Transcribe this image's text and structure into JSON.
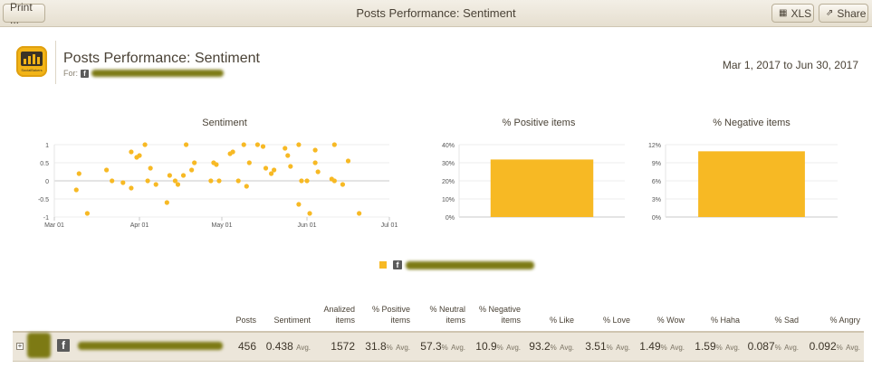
{
  "toolbar": {
    "print_label": "Print ...",
    "title": "Posts Performance: Sentiment",
    "xls_label": "XLS",
    "share_label": "Share"
  },
  "header": {
    "logo_text": "SocialBakers",
    "title": "Posts Performance: Sentiment",
    "for_label": "For:",
    "date_range": "Mar 1, 2017 to Jun 30, 2017"
  },
  "chart_data": [
    {
      "type": "scatter",
      "title": "Sentiment",
      "ylim": [
        -1,
        1
      ],
      "y_ticks": [
        "1",
        "0.5",
        "0",
        "-0.5",
        "-1"
      ],
      "x_ticks": [
        "Mar 01",
        "Apr 01",
        "May 01",
        "Jun 01",
        "Jul 01"
      ],
      "points": [
        {
          "x": "2017-03-09",
          "y": -0.25
        },
        {
          "x": "2017-03-10",
          "y": 0.2
        },
        {
          "x": "2017-03-13",
          "y": -0.9
        },
        {
          "x": "2017-03-20",
          "y": 0.3
        },
        {
          "x": "2017-03-22",
          "y": 0.0
        },
        {
          "x": "2017-03-26",
          "y": -0.05
        },
        {
          "x": "2017-03-29",
          "y": -0.2
        },
        {
          "x": "2017-03-29",
          "y": 0.8
        },
        {
          "x": "2017-03-31",
          "y": 0.65
        },
        {
          "x": "2017-04-01",
          "y": 0.7
        },
        {
          "x": "2017-04-03",
          "y": 1.0
        },
        {
          "x": "2017-04-04",
          "y": 0.0
        },
        {
          "x": "2017-04-05",
          "y": 0.35
        },
        {
          "x": "2017-04-07",
          "y": -0.1
        },
        {
          "x": "2017-04-11",
          "y": -0.6
        },
        {
          "x": "2017-04-12",
          "y": 0.15
        },
        {
          "x": "2017-04-14",
          "y": 0.0
        },
        {
          "x": "2017-04-15",
          "y": -0.1
        },
        {
          "x": "2017-04-17",
          "y": 0.15
        },
        {
          "x": "2017-04-18",
          "y": 1.0
        },
        {
          "x": "2017-04-20",
          "y": 0.3
        },
        {
          "x": "2017-04-21",
          "y": 0.5
        },
        {
          "x": "2017-04-27",
          "y": 0.0
        },
        {
          "x": "2017-04-28",
          "y": 0.5
        },
        {
          "x": "2017-04-29",
          "y": 0.45
        },
        {
          "x": "2017-04-30",
          "y": 0.0
        },
        {
          "x": "2017-05-04",
          "y": 0.75
        },
        {
          "x": "2017-05-05",
          "y": 0.8
        },
        {
          "x": "2017-05-07",
          "y": 0.0
        },
        {
          "x": "2017-05-09",
          "y": 1.0
        },
        {
          "x": "2017-05-10",
          "y": -0.15
        },
        {
          "x": "2017-05-11",
          "y": 0.5
        },
        {
          "x": "2017-05-14",
          "y": 1.0
        },
        {
          "x": "2017-05-16",
          "y": 0.95
        },
        {
          "x": "2017-05-17",
          "y": 0.35
        },
        {
          "x": "2017-05-19",
          "y": 0.2
        },
        {
          "x": "2017-05-20",
          "y": 0.3
        },
        {
          "x": "2017-05-24",
          "y": 0.9
        },
        {
          "x": "2017-05-25",
          "y": 0.7
        },
        {
          "x": "2017-05-26",
          "y": 0.4
        },
        {
          "x": "2017-05-29",
          "y": -0.65
        },
        {
          "x": "2017-05-29",
          "y": 1.0
        },
        {
          "x": "2017-05-30",
          "y": 0.0
        },
        {
          "x": "2017-06-01",
          "y": 0.0
        },
        {
          "x": "2017-06-02",
          "y": -0.9
        },
        {
          "x": "2017-06-04",
          "y": 0.5
        },
        {
          "x": "2017-06-04",
          "y": 0.85
        },
        {
          "x": "2017-06-05",
          "y": 0.25
        },
        {
          "x": "2017-06-10",
          "y": 0.05
        },
        {
          "x": "2017-06-11",
          "y": 0.0
        },
        {
          "x": "2017-06-11",
          "y": 1.0
        },
        {
          "x": "2017-06-14",
          "y": -0.1
        },
        {
          "x": "2017-06-16",
          "y": 0.55
        },
        {
          "x": "2017-06-20",
          "y": -0.9
        }
      ],
      "color": "#f7b924"
    },
    {
      "type": "bar",
      "title": "% Positive items",
      "ylim": [
        0,
        40
      ],
      "y_ticks": [
        "40%",
        "30%",
        "20%",
        "10%",
        "0%"
      ],
      "values": [
        31.8
      ],
      "color": "#f7b924"
    },
    {
      "type": "bar",
      "title": "% Negative items",
      "ylim": [
        0,
        12
      ],
      "y_ticks": [
        "12%",
        "9%",
        "6%",
        "3%",
        "0%"
      ],
      "values": [
        10.9
      ],
      "color": "#f7b924"
    }
  ],
  "table": {
    "headers": [
      "Posts",
      "Sentiment",
      "Analized items",
      "% Positive items",
      "% Neutral items",
      "% Negative items",
      "% Like",
      "% Love",
      "% Wow",
      "% Haha",
      "% Sad",
      "% Angry"
    ],
    "avg_label": "Avg.",
    "row": {
      "posts": "456",
      "sentiment": "0.438",
      "analized": "1572",
      "positive": "31.8",
      "neutral": "57.3",
      "negative": "10.9",
      "like": "93.2",
      "love": "3.51",
      "wow": "1.49",
      "haha": "1.59",
      "sad": "0.087",
      "angry": "0.092"
    },
    "pct": "%"
  },
  "colors": {
    "accent": "#f7b924",
    "row_bg": "#ece6da",
    "redacted": "#7d7a14"
  }
}
